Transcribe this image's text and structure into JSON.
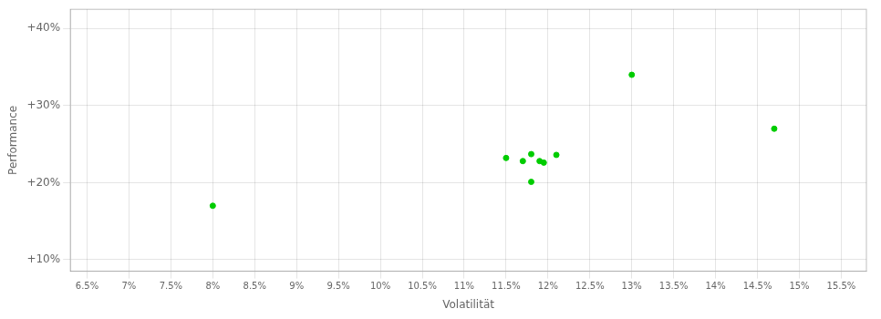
{
  "chart_data": {
    "type": "scatter",
    "xlabel": "Volatilität",
    "ylabel": "Performance",
    "x": [
      0.08,
      0.115,
      0.117,
      0.118,
      0.119,
      0.1195,
      0.121,
      0.118,
      0.13,
      0.147
    ],
    "values": [
      0.17,
      0.232,
      0.228,
      0.237,
      0.228,
      0.226,
      0.236,
      0.201,
      0.34,
      0.27
    ],
    "color": "#00CC00",
    "marker": "circle",
    "xlim": [
      0.063,
      0.158
    ],
    "ylim": [
      0.085,
      0.425
    ],
    "xticks": [
      {
        "value": 0.065,
        "label": "6.5%"
      },
      {
        "value": 0.07,
        "label": "7%"
      },
      {
        "value": 0.075,
        "label": "7.5%"
      },
      {
        "value": 0.08,
        "label": "8%"
      },
      {
        "value": 0.085,
        "label": "8.5%"
      },
      {
        "value": 0.09,
        "label": "9%"
      },
      {
        "value": 0.095,
        "label": "9.5%"
      },
      {
        "value": 0.1,
        "label": "10%"
      },
      {
        "value": 0.105,
        "label": "10.5%"
      },
      {
        "value": 0.11,
        "label": "11%"
      },
      {
        "value": 0.115,
        "label": "11.5%"
      },
      {
        "value": 0.12,
        "label": "12%"
      },
      {
        "value": 0.125,
        "label": "12.5%"
      },
      {
        "value": 0.13,
        "label": "13%"
      },
      {
        "value": 0.135,
        "label": "13.5%"
      },
      {
        "value": 0.14,
        "label": "14%"
      },
      {
        "value": 0.145,
        "label": "14.5%"
      },
      {
        "value": 0.15,
        "label": "15%"
      },
      {
        "value": 0.155,
        "label": "15.5%"
      }
    ],
    "yticks": [
      {
        "value": 0.1,
        "label": "+10%"
      },
      {
        "value": 0.2,
        "label": "+20%"
      },
      {
        "value": 0.3,
        "label": "+30%"
      },
      {
        "value": 0.4,
        "label": "+40%"
      }
    ],
    "grid": true
  }
}
